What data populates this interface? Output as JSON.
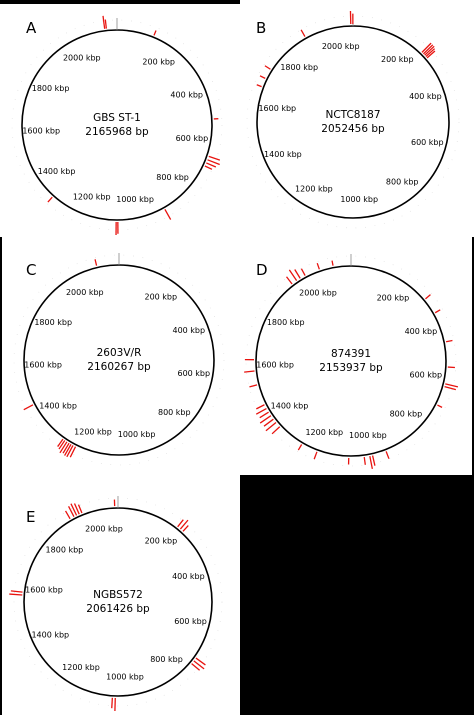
{
  "panels": [
    {
      "letter": "A",
      "name": "GBS ST-1",
      "size_label": "2165968 bp",
      "genome_bp": 2165968,
      "tick_labels": [
        "200 kbp",
        "400 kbp",
        "600 kbp",
        "800 kbp",
        "1000 kbp",
        "1200 kbp",
        "1400 kbp",
        "1600 kbp",
        "1800 kbp",
        "2000 kbp"
      ],
      "red_marks": [
        {
          "kbp": 2122,
          "len": 1.0
        },
        {
          "kbp": 2128,
          "len": 0.7
        },
        {
          "kbp": 655,
          "len": 0.9
        },
        {
          "kbp": 668,
          "len": 1.0
        },
        {
          "kbp": 680,
          "len": 0.8
        },
        {
          "kbp": 692,
          "len": 0.6
        },
        {
          "kbp": 905,
          "len": 0.9
        },
        {
          "kbp": 1080,
          "len": 0.9
        },
        {
          "kbp": 1086,
          "len": 1.0
        },
        {
          "kbp": 1335,
          "len": 0.5
        },
        {
          "kbp": 135,
          "len": 0.4
        },
        {
          "kbp": 520,
          "len": 0.35
        }
      ]
    },
    {
      "letter": "B",
      "name": "NCTC8187",
      "size_label": "2052456 bp",
      "genome_bp": 2052456,
      "tick_labels": [
        "200 kbp",
        "400 kbp",
        "600 kbp",
        "800 kbp",
        "1000 kbp",
        "1200 kbp",
        "1400 kbp",
        "1600 kbp",
        "1800 kbp",
        "2000 kbp"
      ],
      "red_marks": [
        {
          "kbp": 2045,
          "len": 1.0
        },
        {
          "kbp": 2052,
          "len": 0.8
        },
        {
          "kbp": 255,
          "len": 1.0
        },
        {
          "kbp": 262,
          "len": 1.0
        },
        {
          "kbp": 268,
          "len": 1.0
        },
        {
          "kbp": 274,
          "len": 0.9
        },
        {
          "kbp": 280,
          "len": 0.8
        },
        {
          "kbp": 1885,
          "len": 0.6
        },
        {
          "kbp": 1725,
          "len": 0.5
        },
        {
          "kbp": 1690,
          "len": 0.45
        },
        {
          "kbp": 1660,
          "len": 0.4
        }
      ]
    },
    {
      "letter": "C",
      "name": "2603V/R",
      "size_label": "2160267 bp",
      "genome_bp": 2160267,
      "tick_labels": [
        "200 kbp",
        "400 kbp",
        "600 kbp",
        "800 kbp",
        "1000 kbp",
        "1200 kbp",
        "1400 kbp",
        "1600 kbp",
        "1800 kbp",
        "2000 kbp"
      ],
      "red_marks": [
        {
          "kbp": 1240,
          "len": 0.9
        },
        {
          "kbp": 1250,
          "len": 1.0
        },
        {
          "kbp": 1258,
          "len": 1.0
        },
        {
          "kbp": 1266,
          "len": 0.9
        },
        {
          "kbp": 1275,
          "len": 1.0
        },
        {
          "kbp": 1284,
          "len": 0.8
        },
        {
          "kbp": 1292,
          "len": 0.7
        },
        {
          "kbp": 1455,
          "len": 0.8
        },
        {
          "kbp": 2080,
          "len": 0.5
        }
      ]
    },
    {
      "letter": "D",
      "name": "874391",
      "size_label": "2153937 bp",
      "genome_bp": 2153937,
      "tick_labels": [
        "200 kbp",
        "400 kbp",
        "600 kbp",
        "800 kbp",
        "1000 kbp",
        "1200 kbp",
        "1400 kbp",
        "1600 kbp",
        "1800 kbp",
        "2000 kbp"
      ],
      "red_marks": [
        {
          "kbp": 1930,
          "len": 0.7
        },
        {
          "kbp": 1950,
          "len": 1.0
        },
        {
          "kbp": 1965,
          "len": 0.8
        },
        {
          "kbp": 1985,
          "len": 0.6
        },
        {
          "kbp": 2040,
          "len": 0.5
        },
        {
          "kbp": 2090,
          "len": 0.4
        },
        {
          "kbp": 300,
          "len": 0.5
        },
        {
          "kbp": 360,
          "len": 0.45
        },
        {
          "kbp": 470,
          "len": 0.5
        },
        {
          "kbp": 560,
          "len": 0.55
        },
        {
          "kbp": 620,
          "len": 1.0
        },
        {
          "kbp": 630,
          "len": 0.9
        },
        {
          "kbp": 700,
          "len": 0.4
        },
        {
          "kbp": 950,
          "len": 0.6
        },
        {
          "kbp": 1000,
          "len": 0.8
        },
        {
          "kbp": 1010,
          "len": 1.0
        },
        {
          "kbp": 1030,
          "len": 0.6
        },
        {
          "kbp": 1085,
          "len": 0.5
        },
        {
          "kbp": 1200,
          "len": 0.6
        },
        {
          "kbp": 1260,
          "len": 0.5
        },
        {
          "kbp": 1360,
          "len": 0.8
        },
        {
          "kbp": 1380,
          "len": 1.0
        },
        {
          "kbp": 1395,
          "len": 0.9
        },
        {
          "kbp": 1410,
          "len": 1.0
        },
        {
          "kbp": 1425,
          "len": 0.8
        },
        {
          "kbp": 1440,
          "len": 0.9
        },
        {
          "kbp": 1455,
          "len": 0.7
        },
        {
          "kbp": 1530,
          "len": 0.6
        },
        {
          "kbp": 1580,
          "len": 0.8
        },
        {
          "kbp": 1620,
          "len": 0.7
        }
      ]
    },
    {
      "letter": "E",
      "name": "NGBS572",
      "size_label": "2061426 bp",
      "genome_bp": 2061426,
      "tick_labels": [
        "200 kbp",
        "400 kbp",
        "600 kbp",
        "800 kbp",
        "1000 kbp",
        "1200 kbp",
        "1400 kbp",
        "1600 kbp",
        "1800 kbp",
        "2000 kbp"
      ],
      "red_marks": [
        {
          "kbp": 1890,
          "len": 0.7
        },
        {
          "kbp": 1905,
          "len": 0.9
        },
        {
          "kbp": 1915,
          "len": 1.0
        },
        {
          "kbp": 1925,
          "len": 0.9
        },
        {
          "kbp": 1935,
          "len": 0.7
        },
        {
          "kbp": 2050,
          "len": 0.5
        },
        {
          "kbp": 220,
          "len": 0.7
        },
        {
          "kbp": 232,
          "len": 0.9
        },
        {
          "kbp": 244,
          "len": 0.6
        },
        {
          "kbp": 720,
          "len": 0.9
        },
        {
          "kbp": 732,
          "len": 1.0
        },
        {
          "kbp": 744,
          "len": 0.8
        },
        {
          "kbp": 1040,
          "len": 1.0
        },
        {
          "kbp": 1050,
          "len": 0.8
        },
        {
          "kbp": 1570,
          "len": 1.0
        },
        {
          "kbp": 1580,
          "len": 0.9
        }
      ]
    }
  ],
  "colors": {
    "panel_background": "#ffffff",
    "outside_background": "#000000",
    "circle_stroke": "#000000",
    "red_mark": "#e8130f",
    "text": "#000000"
  }
}
